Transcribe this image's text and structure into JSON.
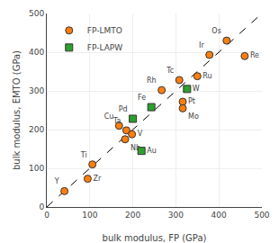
{
  "chart_data": {
    "type": "scatter",
    "xlabel": "bulk modulus, FP (GPa)",
    "ylabel": "bulk modulus, EMTO (GPa)",
    "xlim": [
      0,
      500
    ],
    "ylim": [
      0,
      500
    ],
    "xticks": [
      0,
      100,
      200,
      300,
      400,
      500
    ],
    "yticks": [
      0,
      100,
      200,
      300,
      400,
      500
    ],
    "legend": "upper left",
    "series": [
      {
        "type": "line",
        "line_style": "dashed",
        "color": "black",
        "x": [
          0,
          500
        ],
        "values": [
          0,
          500
        ]
      },
      {
        "name": "FP-LMTO",
        "marker": "circle",
        "labels": [
          "Y",
          "Zr",
          "Ti",
          "Cu",
          "Ta",
          "Nb",
          "V",
          "Rh",
          "Tc",
          "Ru",
          "Pt",
          "Mo",
          "Ir",
          "Os",
          "Re"
        ],
        "x": [
          41,
          95,
          106,
          168,
          185,
          182,
          198,
          267,
          308,
          350,
          316,
          316,
          378,
          418,
          460
        ],
        "values": [
          41,
          73,
          110,
          210,
          198,
          175,
          188,
          302,
          328,
          338,
          272,
          255,
          393,
          430,
          390
        ]
      },
      {
        "name": "FP-LAPW",
        "marker": "square",
        "labels": [
          "Au",
          "Pd",
          "Fe",
          "W"
        ],
        "x": [
          220,
          200,
          243,
          326
        ],
        "values": [
          145,
          228,
          258,
          305
        ]
      }
    ]
  }
}
